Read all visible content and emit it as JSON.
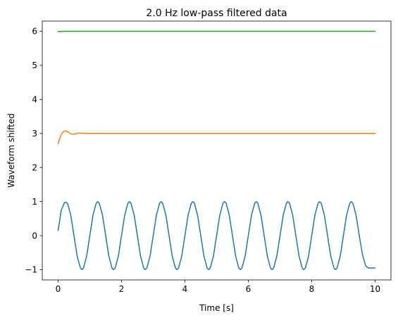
{
  "chart_data": {
    "type": "line",
    "title": "2.0 Hz low-pass filtered data",
    "xlabel": "Time [s]",
    "ylabel": "Waveform shifted",
    "xlim": [
      -0.5,
      10.5
    ],
    "ylim": [
      -1.3,
      6.3
    ],
    "xticks": [
      0,
      2,
      4,
      6,
      8,
      10
    ],
    "yticks": [
      -1,
      0,
      1,
      2,
      3,
      4,
      5,
      6
    ],
    "xtick_labels": [
      "0",
      "2",
      "4",
      "6",
      "8",
      "10"
    ],
    "ytick_labels": [
      "−1",
      "0",
      "1",
      "2",
      "3",
      "4",
      "5",
      "6"
    ],
    "grid": false,
    "legend": "none",
    "series": [
      {
        "color": "#1f77b4",
        "x": [
          0,
          0.1,
          0.2,
          0.25,
          0.3,
          0.4,
          0.5,
          0.6,
          0.7,
          0.75,
          0.8,
          0.9,
          1.0,
          1.1,
          1.2,
          1.25,
          1.3,
          1.4,
          1.5,
          1.6,
          1.7,
          1.75,
          1.8,
          1.9,
          2.0,
          2.1,
          2.2,
          2.25,
          2.3,
          2.4,
          2.5,
          2.6,
          2.7,
          2.75,
          2.8,
          2.9,
          3.0,
          3.1,
          3.2,
          3.25,
          3.3,
          3.4,
          3.5,
          3.6,
          3.7,
          3.75,
          3.8,
          3.9,
          4.0,
          4.1,
          4.2,
          4.25,
          4.3,
          4.4,
          4.5,
          4.6,
          4.7,
          4.75,
          4.8,
          4.9,
          5.0,
          5.1,
          5.2,
          5.25,
          5.3,
          5.4,
          5.5,
          5.6,
          5.7,
          5.75,
          5.8,
          5.9,
          6.0,
          6.1,
          6.2,
          6.25,
          6.3,
          6.4,
          6.5,
          6.6,
          6.7,
          6.75,
          6.8,
          6.9,
          7.0,
          7.1,
          7.2,
          7.25,
          7.3,
          7.4,
          7.5,
          7.6,
          7.7,
          7.75,
          7.8,
          7.9,
          8.0,
          8.1,
          8.2,
          8.25,
          8.3,
          8.4,
          8.5,
          8.6,
          8.7,
          8.75,
          8.8,
          8.9,
          9.0,
          9.1,
          9.2,
          9.25,
          9.3,
          9.4,
          9.5,
          9.6,
          9.7,
          9.75,
          9.8,
          9.85,
          9.9,
          10.0
        ],
        "y": [
          0.15,
          0.75,
          0.97,
          0.98,
          0.94,
          0.6,
          0.0,
          -0.6,
          -0.94,
          -1.0,
          -0.95,
          -0.6,
          0.0,
          0.6,
          0.95,
          1.0,
          0.95,
          0.6,
          0.0,
          -0.6,
          -0.95,
          -1.0,
          -0.95,
          -0.6,
          0.0,
          0.6,
          0.95,
          1.0,
          0.95,
          0.6,
          0.0,
          -0.6,
          -0.95,
          -1.0,
          -0.95,
          -0.6,
          0.0,
          0.6,
          0.95,
          1.0,
          0.95,
          0.6,
          0.0,
          -0.6,
          -0.95,
          -1.0,
          -0.95,
          -0.6,
          0.0,
          0.6,
          0.95,
          1.0,
          0.95,
          0.6,
          0.0,
          -0.6,
          -0.95,
          -1.0,
          -0.95,
          -0.6,
          0.0,
          0.6,
          0.95,
          1.0,
          0.95,
          0.6,
          0.0,
          -0.6,
          -0.95,
          -1.0,
          -0.95,
          -0.6,
          0.0,
          0.6,
          0.95,
          1.0,
          0.95,
          0.6,
          0.0,
          -0.6,
          -0.95,
          -1.0,
          -0.95,
          -0.6,
          0.0,
          0.6,
          0.95,
          1.0,
          0.95,
          0.6,
          0.0,
          -0.6,
          -0.95,
          -1.0,
          -0.95,
          -0.6,
          0.0,
          0.6,
          0.95,
          1.0,
          0.95,
          0.6,
          0.0,
          -0.6,
          -0.95,
          -1.0,
          -0.95,
          -0.6,
          0.0,
          0.6,
          0.95,
          1.0,
          0.95,
          0.6,
          0.0,
          -0.55,
          -0.88,
          -0.93,
          -0.95,
          -0.95,
          -0.95,
          -0.95
        ]
      },
      {
        "color": "#ff7f0e",
        "x": [
          0,
          0.05,
          0.1,
          0.15,
          0.2,
          0.25,
          0.3,
          0.35,
          0.4,
          0.45,
          0.5,
          0.55,
          0.6,
          0.65,
          0.7,
          0.8,
          0.9,
          1.0,
          1.5,
          2.0,
          4.0,
          6.0,
          8.0,
          10.0
        ],
        "y": [
          2.7,
          2.85,
          2.97,
          3.04,
          3.07,
          3.07,
          3.05,
          3.02,
          2.99,
          2.98,
          2.98,
          2.99,
          3.0,
          3.01,
          3.01,
          3.005,
          3.0,
          3.0,
          3.0,
          3.0,
          3.0,
          3.0,
          3.0,
          3.0
        ]
      },
      {
        "color": "#2ca02c",
        "x": [
          0,
          0.1,
          0.2,
          0.3,
          1.0,
          2.0,
          4.0,
          6.0,
          8.0,
          10.0
        ],
        "y": [
          5.99,
          5.995,
          6.0,
          6.0,
          6.0,
          6.0,
          6.0,
          6.0,
          6.0,
          6.0
        ]
      }
    ]
  }
}
